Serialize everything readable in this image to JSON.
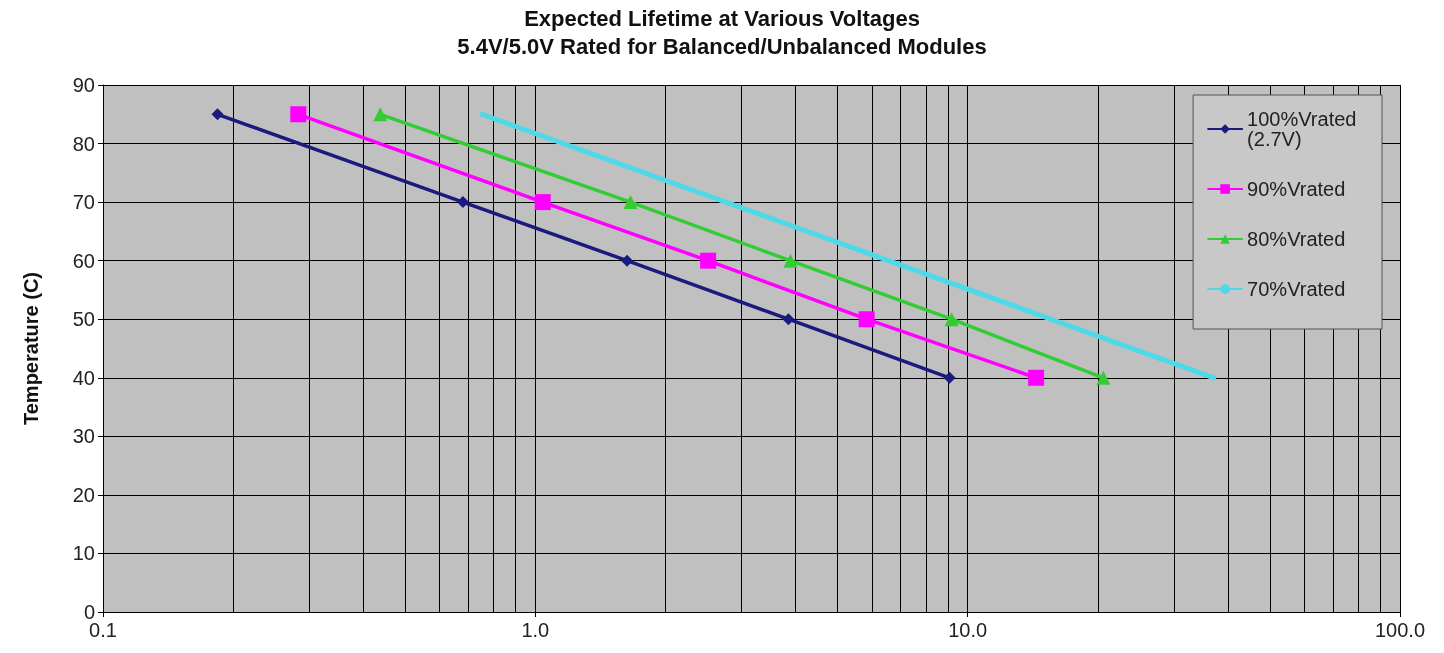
{
  "chart_data": {
    "type": "line",
    "title": "Expected Lifetime at Various Voltages",
    "subtitle": "5.4V/5.0V Rated for Balanced/Unbalanced Modules",
    "ylabel": "Temperature (C)",
    "log": "x",
    "xlim": [
      0.1,
      100
    ],
    "xticks": [
      {
        "value": 0.1,
        "label": "0.1"
      },
      {
        "value": 1,
        "label": "1.0"
      },
      {
        "value": 10,
        "label": "10.0"
      },
      {
        "value": 100,
        "label": "100.0"
      }
    ],
    "ylim": [
      0,
      90
    ],
    "yticks": [
      0,
      10,
      20,
      30,
      40,
      50,
      60,
      70,
      80,
      90
    ],
    "grid": true,
    "legend": "top right",
    "line_style": "solid",
    "series": [
      {
        "name": "100%Vrated (2.7V)",
        "color": "#1a1a80",
        "marker": "diamond",
        "x": [
          0.184,
          0.68,
          1.63,
          3.85,
          9.08
        ],
        "values": [
          85,
          70,
          60,
          50,
          40
        ]
      },
      {
        "name": "90%Vrated",
        "color": "#ff00ff",
        "marker": "square",
        "x": [
          0.283,
          1.04,
          2.51,
          5.84,
          14.4
        ],
        "values": [
          85,
          70,
          60,
          50,
          40
        ]
      },
      {
        "name": "80%Vrated",
        "color": "#33cc33",
        "marker": "triangle",
        "x": [
          0.438,
          1.66,
          3.89,
          9.18,
          20.6
        ],
        "values": [
          85,
          70,
          60,
          50,
          40
        ]
      },
      {
        "name": "70%Vrated",
        "color": "#4dd9e8",
        "marker": "none",
        "x": [
          0.753,
          37.1
        ],
        "values": [
          85,
          40
        ]
      }
    ]
  }
}
